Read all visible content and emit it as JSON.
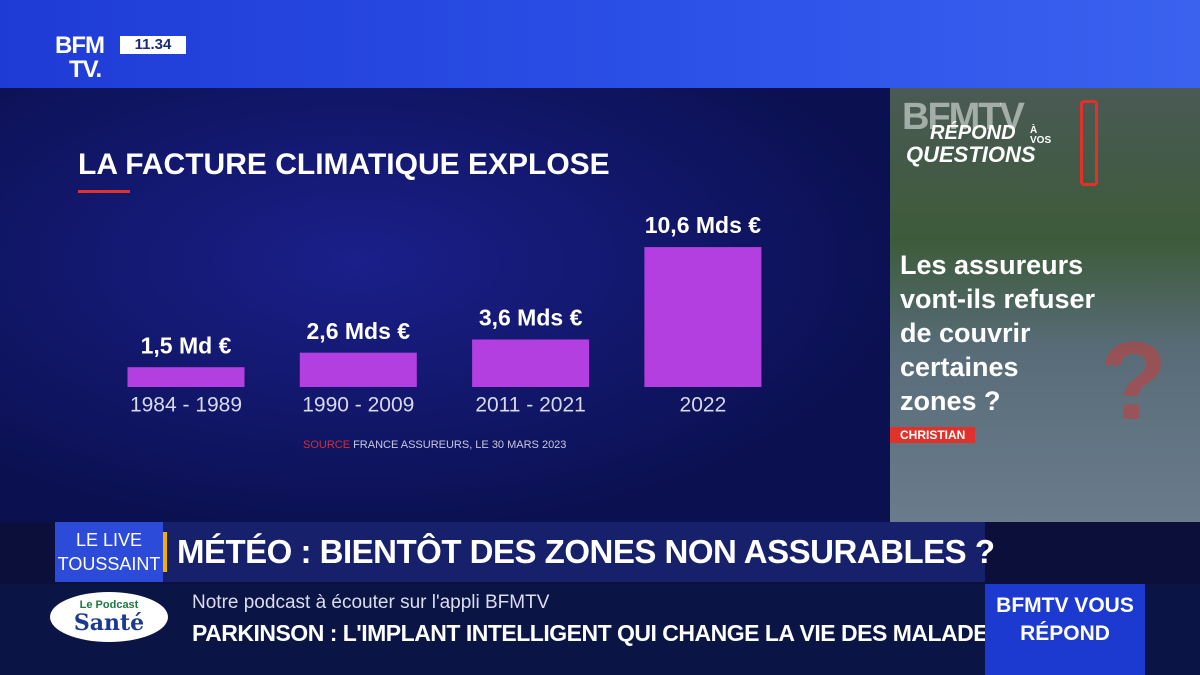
{
  "logo": [
    "BFM",
    "TV."
  ],
  "clock": "11.34",
  "chart_data": {
    "type": "bar",
    "title": "LA FACTURE CLIMATIQUE EXPLOSE",
    "categories": [
      "1984 - 1989",
      "1990 - 2009",
      "2011 - 2021",
      "2022"
    ],
    "values": [
      1.5,
      2.6,
      3.6,
      10.6
    ],
    "value_labels": [
      "1,5 Md €",
      "2,6 Mds €",
      "3,6 Mds €",
      "10,6 Mds €"
    ],
    "color": "#b33fe0",
    "source_label": "SOURCE",
    "source": "FRANCE ASSUREURS, LE 30 MARS 2023"
  },
  "sidebar": {
    "brand": "BFMTV",
    "tagline": [
      "RÉPOND",
      "À VOS",
      "QUESTIONS"
    ],
    "question": [
      "Les assureurs",
      "vont-ils refuser",
      "de couvrir",
      "certaines",
      "zones ?"
    ],
    "author": "CHRISTIAN"
  },
  "banner": {
    "show": [
      "LE LIVE",
      "TOUSSAINT"
    ],
    "headline": "MÉTÉO : BIENTÔT DES ZONES NON ASSURABLES ?"
  },
  "ticker": {
    "podcast": [
      "Le Podcast",
      "Santé"
    ],
    "subtitle": "Notre podcast à écouter sur l'appli BFMTV",
    "headline": "PARKINSON : L'IMPLANT INTELLIGENT QUI CHANGE LA VIE DES MALADES",
    "box": [
      "BFMTV VOUS",
      "RÉPOND"
    ]
  }
}
